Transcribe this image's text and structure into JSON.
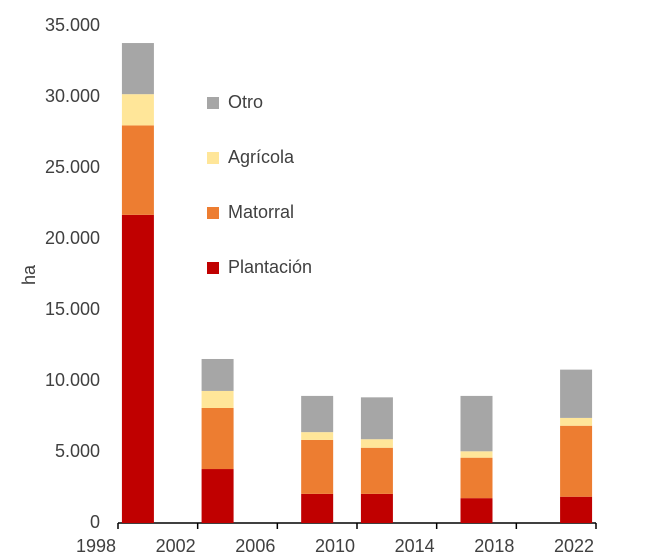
{
  "chart_data": {
    "type": "stacked_bar",
    "ylabel": "ha",
    "x": [
      1999,
      2003,
      2008,
      2011,
      2016,
      2021
    ],
    "series": [
      {
        "name": "Plantación",
        "color": "#c00000",
        "values": [
          21700,
          3800,
          2050,
          2050,
          1750,
          1850
        ]
      },
      {
        "name": "Matorral",
        "color": "#ed7d31",
        "values": [
          6300,
          4300,
          3800,
          3250,
          2850,
          5000
        ]
      },
      {
        "name": "Agrícola",
        "color": "#ffe699",
        "values": [
          2200,
          1200,
          550,
          600,
          450,
          550
        ]
      },
      {
        "name": "Otro",
        "color": "#a6a6a6",
        "values": [
          3600,
          2250,
          2550,
          2950,
          3900,
          3400
        ]
      }
    ],
    "xlim": [
      1998,
      2022
    ],
    "xticks": [
      1998,
      2002,
      2006,
      2010,
      2014,
      2018,
      2022
    ],
    "ylim": [
      0,
      35000
    ],
    "yticks": [
      0,
      {
        "value": 5000,
        "label": "5.000"
      },
      {
        "value": 10000,
        "label": "10.000"
      },
      {
        "value": 15000,
        "label": "15.000"
      },
      {
        "value": 20000,
        "label": "20.000"
      },
      {
        "value": 25000,
        "label": "25.000"
      },
      {
        "value": 30000,
        "label": "30.000"
      },
      {
        "value": 35000,
        "label": "35.000"
      }
    ],
    "grid": false
  }
}
